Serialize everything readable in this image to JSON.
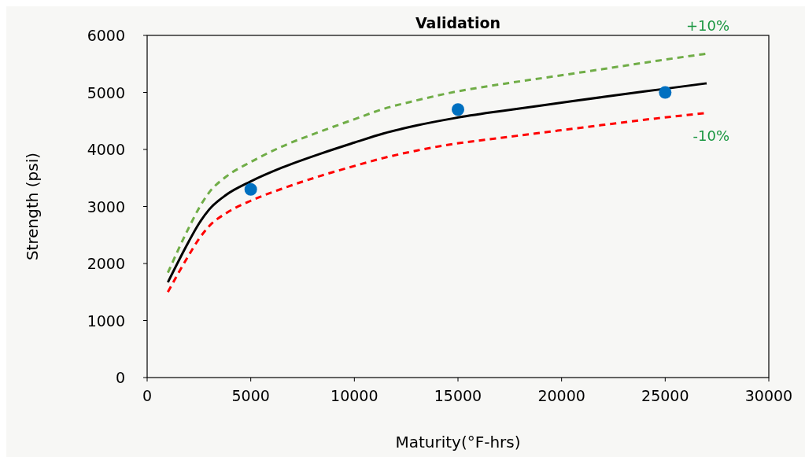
{
  "chart_data": {
    "type": "line",
    "title": "Validation",
    "xlabel": "Maturity(°F-hrs)",
    "ylabel": "Strength (psi)",
    "x": [
      1000,
      2000,
      2500,
      3000,
      3800,
      5000,
      6500,
      8400,
      10000,
      11400,
      13000,
      14850,
      17000,
      19800,
      22000,
      24700,
      27000
    ],
    "series": [
      {
        "color": "#000000",
        "line_style": "solid",
        "values": [
          1670,
          2380,
          2700,
          2950,
          3200,
          3440,
          3680,
          3930,
          4120,
          4280,
          4420,
          4550,
          4670,
          4810,
          4920,
          5050,
          5160
        ]
      },
      {
        "color": "#70ad47",
        "line_style": "dashed",
        "values": [
          1840,
          2620,
          2970,
          3250,
          3520,
          3780,
          4050,
          4320,
          4530,
          4710,
          4860,
          5010,
          5140,
          5290,
          5410,
          5560,
          5680
        ]
      },
      {
        "color": "#ff0000",
        "line_style": "dashed",
        "values": [
          1500,
          2140,
          2430,
          2660,
          2880,
          3100,
          3310,
          3540,
          3710,
          3850,
          3980,
          4100,
          4200,
          4330,
          4430,
          4550,
          4640
        ]
      },
      {
        "type": "scatter",
        "marker": "circle",
        "color": "#0070c0",
        "x": [
          5000,
          15000,
          25000
        ],
        "values": [
          3300,
          4700,
          5000
        ]
      }
    ],
    "annotations": [
      "+10%",
      "-10%"
    ],
    "xlim": [
      0,
      30000
    ],
    "xticks": [
      0,
      5000,
      10000,
      15000,
      20000,
      25000,
      30000
    ],
    "ylim": [
      0,
      6000
    ],
    "yticks": [
      0,
      1000,
      2000,
      3000,
      4000,
      5000,
      6000
    ],
    "grid": false
  }
}
